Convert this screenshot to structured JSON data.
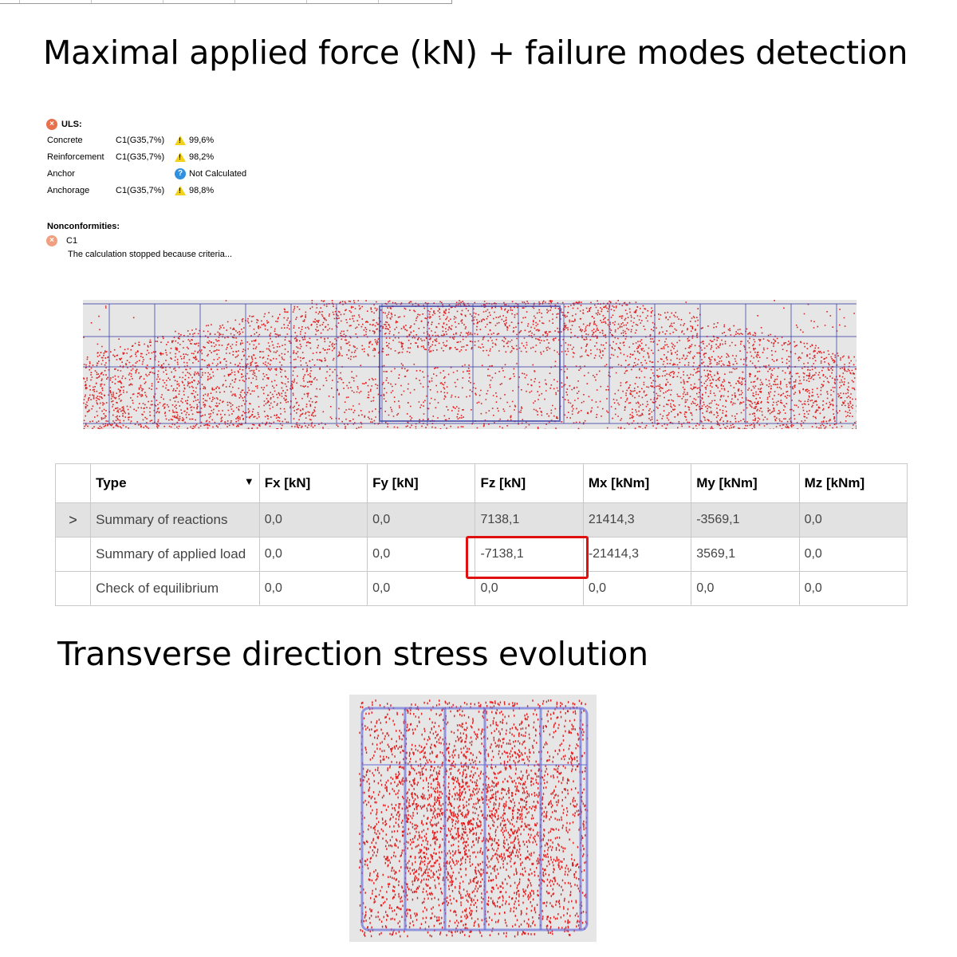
{
  "title1": "Maximal applied force (kN) + failure modes detection",
  "title2": "Transverse direction stress evolution",
  "uls": {
    "label": "ULS:",
    "rows": [
      {
        "name": "Concrete",
        "ref": "C1(G35,7%)",
        "icon": "warning-icon",
        "value": "99,6%"
      },
      {
        "name": "Reinforcement",
        "ref": "C1(G35,7%)",
        "icon": "warning-icon",
        "value": "98,2%"
      },
      {
        "name": "Anchor",
        "ref": "",
        "icon": "info-icon",
        "value": "Not Calculated"
      },
      {
        "name": "Anchorage",
        "ref": "C1(G35,7%)",
        "icon": "warning-icon",
        "value": "98,8%"
      }
    ]
  },
  "nonconformities": {
    "label": "Nonconformities:",
    "item": "C1",
    "message": "The calculation stopped because criteria..."
  },
  "table": {
    "headers": [
      "Type",
      "Fx [kN]",
      "Fy [kN]",
      "Fz [kN]",
      "Mx [kNm]",
      "My [kNm]",
      "Mz [kNm]"
    ],
    "rows": [
      {
        "expander": ">",
        "type": "Summary of reactions",
        "values": [
          "0,0",
          "0,0",
          "7138,1",
          "21414,3",
          "-3569,1",
          "0,0"
        ]
      },
      {
        "expander": "",
        "type": "Summary of applied load",
        "values": [
          "0,0",
          "0,0",
          "-7138,1",
          "-21414,3",
          "3569,1",
          "0,0"
        ]
      },
      {
        "expander": "",
        "type": "Check of equilibrium",
        "values": [
          "0,0",
          "0,0",
          "0,0",
          "0,0",
          "0,0",
          "0,0"
        ]
      }
    ]
  },
  "colors": {
    "stress": "#e02020",
    "rebar": "#3b3fa8",
    "highlight": "#e01010"
  }
}
